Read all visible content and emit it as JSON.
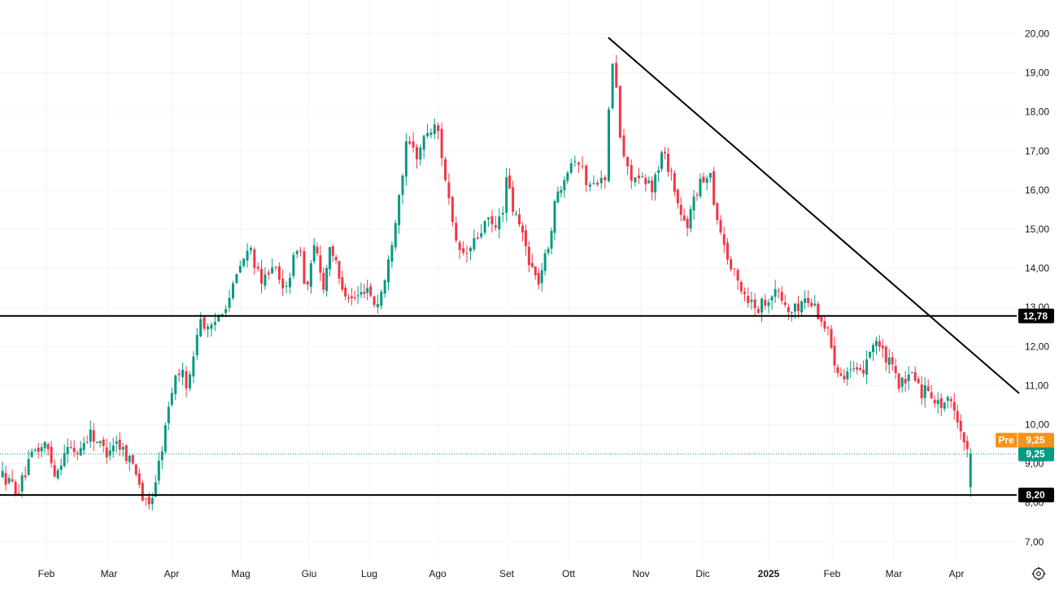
{
  "chart_data": {
    "type": "candlestick",
    "y_axis": {
      "position": "right",
      "ticks": [
        "20,00",
        "19,00",
        "18,00",
        "17,00",
        "16,00",
        "15,00",
        "14,00",
        "13,00",
        "12,00",
        "11,00",
        "10,00",
        "9,00",
        "8,00",
        "7,00"
      ],
      "tick_values": [
        20,
        19,
        18,
        17,
        16,
        15,
        14,
        13,
        12,
        11,
        10,
        9,
        8,
        7
      ]
    },
    "x_axis": {
      "ticks": [
        "Feb",
        "Mar",
        "Apr",
        "Mag",
        "Giu",
        "Lug",
        "Ago",
        "Set",
        "Ott",
        "Nov",
        "Dic",
        "2025",
        "Feb",
        "Mar",
        "Apr"
      ]
    },
    "grid": true,
    "colors": {
      "up": "#089981",
      "down": "#f23645",
      "line": "#000000",
      "pre": "#f7931a",
      "dotted": "#089981"
    },
    "horizontal_lines": [
      {
        "value": 12.78,
        "label": "12,78"
      },
      {
        "value": 8.2,
        "label": "8,20"
      }
    ],
    "trend_line": {
      "start": {
        "month": 8.55,
        "price": 19.9
      },
      "end": {
        "month": 15.0,
        "price": 10.8
      }
    },
    "last_price": {
      "value": 9.25,
      "label": "9,25"
    },
    "pre_market": {
      "tag": "Pre",
      "value": 9.25,
      "label": "9,25"
    },
    "anchors": [
      [
        -0.7,
        8.7
      ],
      [
        -0.45,
        8.3
      ],
      [
        -0.2,
        9.3
      ],
      [
        0.0,
        9.5
      ],
      [
        0.15,
        8.7
      ],
      [
        0.3,
        9.4
      ],
      [
        0.5,
        9.3
      ],
      [
        0.7,
        9.8
      ],
      [
        0.95,
        9.3
      ],
      [
        1.1,
        9.6
      ],
      [
        1.3,
        9.2
      ],
      [
        1.45,
        8.8
      ],
      [
        1.55,
        8.0
      ],
      [
        1.65,
        7.9
      ],
      [
        1.8,
        9.0
      ],
      [
        1.9,
        9.9
      ],
      [
        2.0,
        10.9
      ],
      [
        2.1,
        11.4
      ],
      [
        2.25,
        11.0
      ],
      [
        2.4,
        12.8
      ],
      [
        2.55,
        12.3
      ],
      [
        2.7,
        12.9
      ],
      [
        2.85,
        13.3
      ],
      [
        3.0,
        14.1
      ],
      [
        3.15,
        14.5
      ],
      [
        3.3,
        13.5
      ],
      [
        3.45,
        14.2
      ],
      [
        3.6,
        13.4
      ],
      [
        3.75,
        14.0
      ],
      [
        3.85,
        14.8
      ],
      [
        3.95,
        13.3
      ],
      [
        4.1,
        14.6
      ],
      [
        4.25,
        13.5
      ],
      [
        4.35,
        14.7
      ],
      [
        4.5,
        13.7
      ],
      [
        4.7,
        13.2
      ],
      [
        4.85,
        13.3
      ],
      [
        4.95,
        13.6
      ],
      [
        5.1,
        13.0
      ],
      [
        5.25,
        13.8
      ],
      [
        5.4,
        15.5
      ],
      [
        5.55,
        17.2
      ],
      [
        5.7,
        16.9
      ],
      [
        5.85,
        17.5
      ],
      [
        6.0,
        17.6
      ],
      [
        6.15,
        15.9
      ],
      [
        6.25,
        14.6
      ],
      [
        6.4,
        14.3
      ],
      [
        6.55,
        14.7
      ],
      [
        6.7,
        15.2
      ],
      [
        6.85,
        15.0
      ],
      [
        6.95,
        15.6
      ],
      [
        7.0,
        16.3
      ],
      [
        7.1,
        15.5
      ],
      [
        7.25,
        14.9
      ],
      [
        7.35,
        14.3
      ],
      [
        7.5,
        13.6
      ],
      [
        7.65,
        14.4
      ],
      [
        7.8,
        15.8
      ],
      [
        7.95,
        16.5
      ],
      [
        8.1,
        16.9
      ],
      [
        8.25,
        16.2
      ],
      [
        8.35,
        16.1
      ],
      [
        8.45,
        16.5
      ],
      [
        8.5,
        16.0
      ],
      [
        8.55,
        17.8
      ],
      [
        8.62,
        19.6
      ],
      [
        8.7,
        17.5
      ],
      [
        8.8,
        16.5
      ],
      [
        9.0,
        16.2
      ],
      [
        9.2,
        16.1
      ],
      [
        9.35,
        17.0
      ],
      [
        9.5,
        16.4
      ],
      [
        9.6,
        15.6
      ],
      [
        9.75,
        14.9
      ],
      [
        9.85,
        15.9
      ],
      [
        10.0,
        16.2
      ],
      [
        10.1,
        16.6
      ],
      [
        10.2,
        15.4
      ],
      [
        10.3,
        14.8
      ],
      [
        10.4,
        14.1
      ],
      [
        10.55,
        13.6
      ],
      [
        10.7,
        13.2
      ],
      [
        10.85,
        13.0
      ],
      [
        11.0,
        13.3
      ],
      [
        11.15,
        13.4
      ],
      [
        11.3,
        12.9
      ],
      [
        11.4,
        12.9
      ],
      [
        11.55,
        13.2
      ],
      [
        11.7,
        13.1
      ],
      [
        11.8,
        12.8
      ],
      [
        11.95,
        12.3
      ],
      [
        12.05,
        11.6
      ],
      [
        12.15,
        11.3
      ],
      [
        12.3,
        11.4
      ],
      [
        12.45,
        11.2
      ],
      [
        12.6,
        11.9
      ],
      [
        12.7,
        12.2
      ],
      [
        12.85,
        11.7
      ],
      [
        12.95,
        11.5
      ],
      [
        13.05,
        11.1
      ],
      [
        13.2,
        11.0
      ],
      [
        13.3,
        11.4
      ],
      [
        13.45,
        10.8
      ],
      [
        13.55,
        11.0
      ],
      [
        13.7,
        10.5
      ],
      [
        13.85,
        10.6
      ],
      [
        14.0,
        10.3
      ],
      [
        14.1,
        9.7
      ],
      [
        14.17,
        9.3
      ],
      [
        14.22,
        8.6
      ],
      [
        14.27,
        9.25
      ]
    ]
  },
  "ui": {
    "settings_icon": "gear-icon"
  }
}
